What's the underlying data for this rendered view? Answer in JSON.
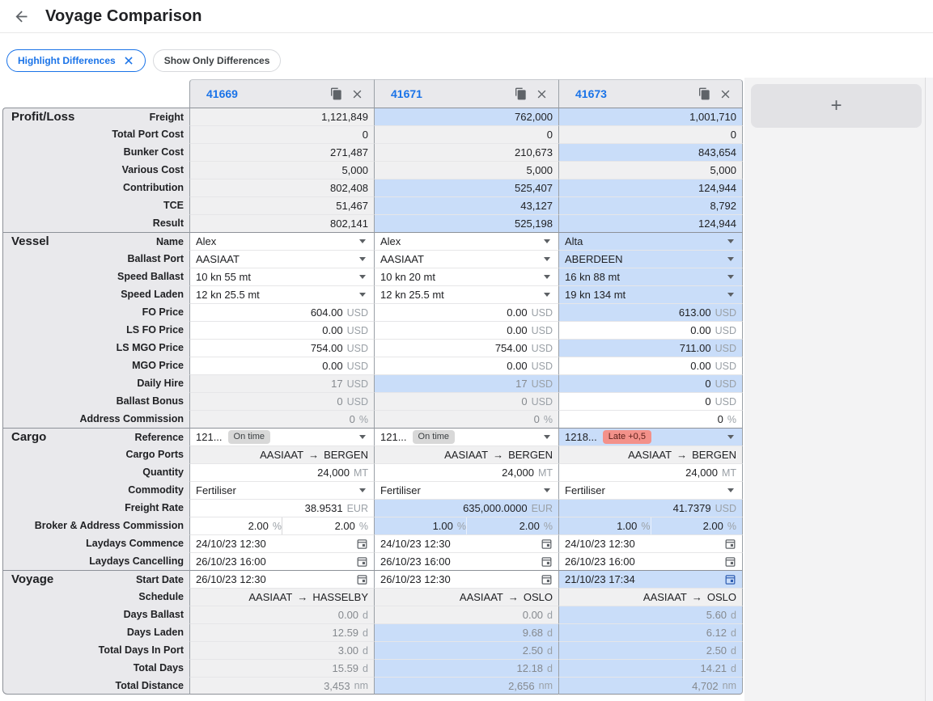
{
  "topbar": {
    "title": "Voyage Comparison"
  },
  "chips": {
    "highlight": "Highlight Differences",
    "show_only": "Show Only Differences"
  },
  "add_button_label": "+",
  "columns": [
    "41669",
    "41671",
    "41673"
  ],
  "colors": {
    "accent": "#1a73e8",
    "highlight_cell": "#c9ddf9",
    "readonly_cell": "#f0f0f1",
    "label_bg": "#e9e9ec",
    "ontime_badge": "#d8d8d8",
    "late_badge": "#f3918a"
  },
  "sections": [
    {
      "name": "Profit/Loss",
      "rows": [
        {
          "label": "Freight",
          "type": "num",
          "cells": [
            {
              "v": "1,121,849",
              "bg": "gray",
              "ro": true
            },
            {
              "v": "762,000",
              "bg": "blue",
              "ro": true
            },
            {
              "v": "1,001,710",
              "bg": "blue",
              "ro": true
            }
          ]
        },
        {
          "label": "Total Port Cost",
          "type": "num",
          "cells": [
            {
              "v": "0",
              "bg": "gray",
              "ro": true
            },
            {
              "v": "0",
              "bg": "gray",
              "ro": true
            },
            {
              "v": "0",
              "bg": "gray",
              "ro": true
            }
          ]
        },
        {
          "label": "Bunker Cost",
          "type": "num",
          "cells": [
            {
              "v": "271,487",
              "bg": "gray",
              "ro": true
            },
            {
              "v": "210,673",
              "bg": "gray",
              "ro": true
            },
            {
              "v": "843,654",
              "bg": "blue",
              "ro": true
            }
          ]
        },
        {
          "label": "Various Cost",
          "type": "num",
          "cells": [
            {
              "v": "5,000",
              "bg": "gray",
              "ro": true
            },
            {
              "v": "5,000",
              "bg": "gray",
              "ro": true
            },
            {
              "v": "5,000",
              "bg": "gray",
              "ro": true
            }
          ]
        },
        {
          "label": "Contribution",
          "type": "num",
          "cells": [
            {
              "v": "802,408",
              "bg": "gray",
              "ro": true
            },
            {
              "v": "525,407",
              "bg": "blue",
              "ro": true
            },
            {
              "v": "124,944",
              "bg": "blue",
              "ro": true
            }
          ]
        },
        {
          "label": "TCE",
          "type": "num",
          "cells": [
            {
              "v": "51,467",
              "bg": "gray",
              "ro": true
            },
            {
              "v": "43,127",
              "bg": "blue",
              "ro": true
            },
            {
              "v": "8,792",
              "bg": "blue",
              "ro": true
            }
          ]
        },
        {
          "label": "Result",
          "type": "num",
          "cells": [
            {
              "v": "802,141",
              "bg": "gray",
              "ro": true
            },
            {
              "v": "525,198",
              "bg": "blue",
              "ro": true
            },
            {
              "v": "124,944",
              "bg": "blue",
              "ro": true
            }
          ]
        }
      ]
    },
    {
      "name": "Vessel",
      "rows": [
        {
          "label": "Name",
          "type": "select",
          "cells": [
            {
              "v": "Alex",
              "bg": "white"
            },
            {
              "v": "Alex",
              "bg": "white"
            },
            {
              "v": "Alta",
              "bg": "blue"
            }
          ]
        },
        {
          "label": "Ballast Port",
          "type": "select",
          "cells": [
            {
              "v": "AASIAAT",
              "bg": "white"
            },
            {
              "v": "AASIAAT",
              "bg": "white"
            },
            {
              "v": "ABERDEEN",
              "bg": "blue"
            }
          ]
        },
        {
          "label": "Speed Ballast",
          "type": "select",
          "cells": [
            {
              "v": "10 kn 55 mt",
              "bg": "white"
            },
            {
              "v": "10 kn 20 mt",
              "bg": "white"
            },
            {
              "v": "16 kn 88 mt",
              "bg": "blue"
            }
          ]
        },
        {
          "label": "Speed Laden",
          "type": "select",
          "cells": [
            {
              "v": "12 kn 25.5 mt",
              "bg": "white"
            },
            {
              "v": "12 kn 25.5 mt",
              "bg": "white"
            },
            {
              "v": "19 kn 134 mt",
              "bg": "blue"
            }
          ]
        },
        {
          "label": "FO Price",
          "type": "num",
          "cells": [
            {
              "v": "604.00",
              "u": "USD",
              "bg": "white"
            },
            {
              "v": "0.00",
              "u": "USD",
              "bg": "white"
            },
            {
              "v": "613.00",
              "u": "USD",
              "bg": "blue"
            }
          ]
        },
        {
          "label": "LS FO Price",
          "type": "num",
          "cells": [
            {
              "v": "0.00",
              "u": "USD",
              "bg": "white"
            },
            {
              "v": "0.00",
              "u": "USD",
              "bg": "white"
            },
            {
              "v": "0.00",
              "u": "USD",
              "bg": "white"
            }
          ]
        },
        {
          "label": "LS MGO Price",
          "type": "num",
          "cells": [
            {
              "v": "754.00",
              "u": "USD",
              "bg": "white"
            },
            {
              "v": "754.00",
              "u": "USD",
              "bg": "white"
            },
            {
              "v": "711.00",
              "u": "USD",
              "bg": "blue"
            }
          ]
        },
        {
          "label": "MGO Price",
          "type": "num",
          "cells": [
            {
              "v": "0.00",
              "u": "USD",
              "bg": "white"
            },
            {
              "v": "0.00",
              "u": "USD",
              "bg": "white"
            },
            {
              "v": "0.00",
              "u": "USD",
              "bg": "white"
            }
          ]
        },
        {
          "label": "Daily Hire",
          "type": "num",
          "cells": [
            {
              "v": "17",
              "u": "USD",
              "bg": "gray",
              "ro": true,
              "muted": true
            },
            {
              "v": "17",
              "u": "USD",
              "bg": "blue",
              "ro": true,
              "muted": true
            },
            {
              "v": "0",
              "u": "USD",
              "bg": "blue"
            }
          ]
        },
        {
          "label": "Ballast Bonus",
          "type": "num",
          "cells": [
            {
              "v": "0",
              "u": "USD",
              "bg": "gray",
              "ro": true,
              "muted": true
            },
            {
              "v": "0",
              "u": "USD",
              "bg": "gray",
              "ro": true,
              "muted": true
            },
            {
              "v": "0",
              "u": "USD",
              "bg": "white"
            }
          ]
        },
        {
          "label": "Address Commission",
          "type": "num",
          "cells": [
            {
              "v": "0",
              "u": "%",
              "bg": "gray",
              "ro": true,
              "muted": true
            },
            {
              "v": "0",
              "u": "%",
              "bg": "gray",
              "ro": true,
              "muted": true
            },
            {
              "v": "0",
              "u": "%",
              "bg": "white"
            }
          ]
        }
      ]
    },
    {
      "name": "Cargo",
      "rows": [
        {
          "label": "Reference",
          "type": "ref",
          "cells": [
            {
              "v": "121...",
              "badge": "On time",
              "badge_type": "ontime",
              "bg": "white"
            },
            {
              "v": "121...",
              "badge": "On time",
              "badge_type": "ontime",
              "bg": "white"
            },
            {
              "v": "1218...",
              "badge": "Late +0,5",
              "badge_type": "late",
              "bg": "blue"
            }
          ]
        },
        {
          "label": "Cargo Ports",
          "type": "route",
          "cells": [
            {
              "from": "AASIAAT",
              "to": "BERGEN",
              "bg": "gray",
              "ro": true
            },
            {
              "from": "AASIAAT",
              "to": "BERGEN",
              "bg": "gray",
              "ro": true
            },
            {
              "from": "AASIAAT",
              "to": "BERGEN",
              "bg": "gray",
              "ro": true
            }
          ]
        },
        {
          "label": "Quantity",
          "type": "num",
          "cells": [
            {
              "v": "24,000",
              "u": "MT",
              "bg": "white"
            },
            {
              "v": "24,000",
              "u": "MT",
              "bg": "white"
            },
            {
              "v": "24,000",
              "u": "MT",
              "bg": "white"
            }
          ]
        },
        {
          "label": "Commodity",
          "type": "select",
          "cells": [
            {
              "v": "Fertiliser",
              "bg": "white"
            },
            {
              "v": "Fertiliser",
              "bg": "white"
            },
            {
              "v": "Fertiliser",
              "bg": "white"
            }
          ]
        },
        {
          "label": "Freight Rate",
          "type": "num",
          "cells": [
            {
              "v": "38.9531",
              "u": "EUR",
              "bg": "white"
            },
            {
              "v": "635,000.0000",
              "u": "EUR",
              "bg": "blue"
            },
            {
              "v": "41.7379",
              "u": "USD",
              "bg": "blue"
            }
          ]
        },
        {
          "label": "Broker & Address Commission",
          "type": "commission",
          "cells": [
            {
              "v1": "2.00",
              "v2": "2.00",
              "u": "%",
              "bg": "white"
            },
            {
              "v1": "1.00",
              "v2": "2.00",
              "u": "%",
              "bg": "blue"
            },
            {
              "v1": "1.00",
              "v2": "2.00",
              "u": "%",
              "bg": "blue"
            }
          ]
        },
        {
          "label": "Laydays Commence",
          "type": "date",
          "cells": [
            {
              "v": "24/10/23 12:30",
              "bg": "white"
            },
            {
              "v": "24/10/23 12:30",
              "bg": "white"
            },
            {
              "v": "24/10/23 12:30",
              "bg": "white"
            }
          ]
        },
        {
          "label": "Laydays Cancelling",
          "type": "date",
          "cells": [
            {
              "v": "26/10/23 16:00",
              "bg": "white"
            },
            {
              "v": "26/10/23 16:00",
              "bg": "white"
            },
            {
              "v": "26/10/23 16:00",
              "bg": "white"
            }
          ]
        }
      ]
    },
    {
      "name": "Voyage",
      "rows": [
        {
          "label": "Start Date",
          "type": "date",
          "cells": [
            {
              "v": "26/10/23 12:30",
              "bg": "white"
            },
            {
              "v": "26/10/23 12:30",
              "bg": "white"
            },
            {
              "v": "21/10/23 17:34",
              "bg": "blue",
              "icon_blue": true
            }
          ]
        },
        {
          "label": "Schedule",
          "type": "route",
          "cells": [
            {
              "from": "AASIAAT",
              "to": "HASSELBY",
              "bg": "gray",
              "ro": true
            },
            {
              "from": "AASIAAT",
              "to": "OSLO",
              "bg": "gray",
              "ro": true
            },
            {
              "from": "AASIAAT",
              "to": "OSLO",
              "bg": "gray",
              "ro": true
            }
          ]
        },
        {
          "label": "Days Ballast",
          "type": "num",
          "cells": [
            {
              "v": "0.00",
              "u": "d",
              "bg": "gray",
              "ro": true,
              "muted": true
            },
            {
              "v": "0.00",
              "u": "d",
              "bg": "gray",
              "ro": true,
              "muted": true
            },
            {
              "v": "5.60",
              "u": "d",
              "bg": "blue",
              "ro": true,
              "muted": true
            }
          ]
        },
        {
          "label": "Days Laden",
          "type": "num",
          "cells": [
            {
              "v": "12.59",
              "u": "d",
              "bg": "gray",
              "ro": true,
              "muted": true
            },
            {
              "v": "9.68",
              "u": "d",
              "bg": "blue",
              "ro": true,
              "muted": true
            },
            {
              "v": "6.12",
              "u": "d",
              "bg": "blue",
              "ro": true,
              "muted": true
            }
          ]
        },
        {
          "label": "Total Days In Port",
          "type": "num",
          "cells": [
            {
              "v": "3.00",
              "u": "d",
              "bg": "gray",
              "ro": true,
              "muted": true
            },
            {
              "v": "2.50",
              "u": "d",
              "bg": "blue",
              "ro": true,
              "muted": true
            },
            {
              "v": "2.50",
              "u": "d",
              "bg": "blue",
              "ro": true,
              "muted": true
            }
          ]
        },
        {
          "label": "Total Days",
          "type": "num",
          "cells": [
            {
              "v": "15.59",
              "u": "d",
              "bg": "gray",
              "ro": true,
              "muted": true
            },
            {
              "v": "12.18",
              "u": "d",
              "bg": "blue",
              "ro": true,
              "muted": true
            },
            {
              "v": "14.21",
              "u": "d",
              "bg": "blue",
              "ro": true,
              "muted": true
            }
          ]
        },
        {
          "label": "Total Distance",
          "type": "num",
          "cells": [
            {
              "v": "3,453",
              "u": "nm",
              "bg": "gray",
              "ro": true,
              "muted": true
            },
            {
              "v": "2,656",
              "u": "nm",
              "bg": "blue",
              "ro": true,
              "muted": true
            },
            {
              "v": "4,702",
              "u": "nm",
              "bg": "blue",
              "ro": true,
              "muted": true
            }
          ]
        }
      ]
    }
  ]
}
